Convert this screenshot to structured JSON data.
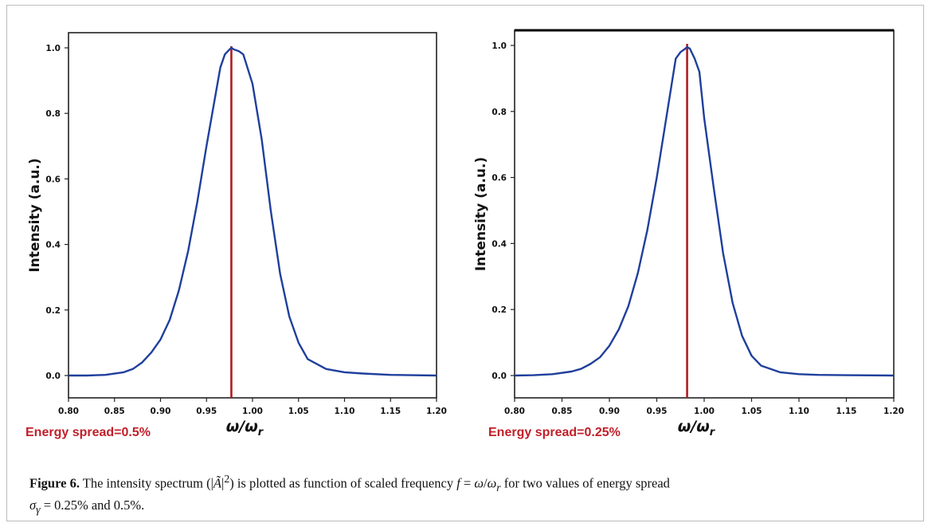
{
  "chart_data": [
    {
      "type": "line",
      "ylabel": "Intensity (a.u.)",
      "xlabel_main": "ω/ω",
      "xlabel_sub": "r",
      "xlim": [
        0.8,
        1.2
      ],
      "ylim": [
        0.0,
        1.0
      ],
      "x_ticks": [
        "0.80",
        "0.85",
        "0.90",
        "0.95",
        "1.00",
        "1.05",
        "1.10",
        "1.15",
        "1.20"
      ],
      "y_ticks": [
        "0.0",
        "0.2",
        "0.4",
        "0.6",
        "0.8",
        "1.0"
      ],
      "annotation": "Energy spread=0.5%",
      "peak_marker_x": 0.977,
      "series": [
        {
          "color": "#1f3f9c",
          "x": [
            0.8,
            0.82,
            0.84,
            0.86,
            0.87,
            0.88,
            0.89,
            0.9,
            0.91,
            0.92,
            0.93,
            0.94,
            0.95,
            0.96,
            0.965,
            0.97,
            0.975,
            0.977,
            0.98,
            0.985,
            0.99,
            1.0,
            1.01,
            1.02,
            1.03,
            1.04,
            1.05,
            1.06,
            1.08,
            1.1,
            1.12,
            1.15,
            1.2
          ],
          "y": [
            0.0,
            0.0,
            0.002,
            0.01,
            0.02,
            0.04,
            0.07,
            0.11,
            0.17,
            0.26,
            0.38,
            0.53,
            0.7,
            0.86,
            0.94,
            0.98,
            0.995,
            1.0,
            0.995,
            0.99,
            0.98,
            0.89,
            0.72,
            0.5,
            0.31,
            0.18,
            0.1,
            0.05,
            0.02,
            0.01,
            0.006,
            0.002,
            0.0
          ]
        }
      ]
    },
    {
      "type": "line",
      "ylabel": "Intensity (a.u.)",
      "xlabel_main": "ω/ω",
      "xlabel_sub": "r",
      "xlim": [
        0.8,
        1.2
      ],
      "ylim": [
        0.0,
        1.0
      ],
      "x_ticks": [
        "0.80",
        "0.85",
        "0.90",
        "0.95",
        "1.00",
        "1.05",
        "1.10",
        "1.15",
        "1.20"
      ],
      "y_ticks": [
        "0.0",
        "0.2",
        "0.4",
        "0.6",
        "0.8",
        "1.0"
      ],
      "annotation": "Energy spread=0.25%",
      "peak_marker_x": 0.982,
      "series": [
        {
          "color": "#1f3f9c",
          "x": [
            0.8,
            0.82,
            0.84,
            0.86,
            0.87,
            0.88,
            0.89,
            0.9,
            0.91,
            0.92,
            0.93,
            0.94,
            0.95,
            0.96,
            0.97,
            0.975,
            0.98,
            0.982,
            0.985,
            0.99,
            0.995,
            1.0,
            1.01,
            1.02,
            1.03,
            1.04,
            1.05,
            1.06,
            1.08,
            1.1,
            1.12,
            1.15,
            1.2
          ],
          "y": [
            0.0,
            0.001,
            0.004,
            0.012,
            0.02,
            0.035,
            0.055,
            0.09,
            0.14,
            0.21,
            0.31,
            0.44,
            0.6,
            0.78,
            0.96,
            0.98,
            0.99,
            0.995,
            0.99,
            0.96,
            0.92,
            0.78,
            0.57,
            0.37,
            0.22,
            0.12,
            0.06,
            0.03,
            0.01,
            0.004,
            0.002,
            0.001,
            0.0
          ]
        }
      ]
    }
  ],
  "caption": {
    "label": "Figure 6.",
    "text_1": " The intensity spectrum (|",
    "a_tilde": "Ã",
    "text_2": "|",
    "sup": "2",
    "text_3": ") is plotted as function of scaled frequency ",
    "f": "f",
    "text_4": " = ",
    "omega": "ω",
    "text_5": "/",
    "omega_r": "ω",
    "r_sub": "r",
    "text_6": " for two values of energy spread",
    "sigma": "σ",
    "gamma_sub": "γ",
    "text_7": " = 0.25% and 0.5%."
  }
}
